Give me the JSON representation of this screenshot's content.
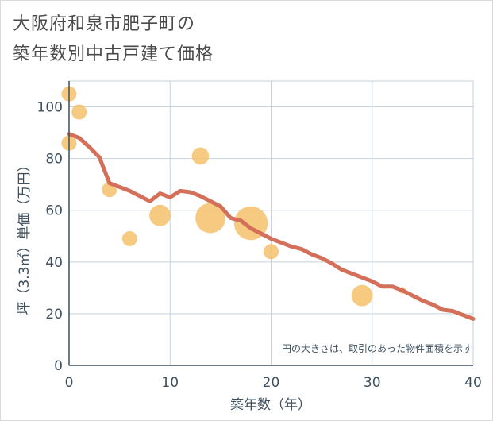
{
  "chart_data": {
    "type": "scatter",
    "title_lines": [
      "大阪府和泉市肥子町の",
      "築年数別中古戸建て価格"
    ],
    "xlabel": "築年数（年）",
    "ylabel": "坪（3.3㎡）単価（万円）",
    "xlim": [
      0,
      40
    ],
    "ylim": [
      0,
      110
    ],
    "x_ticks": [
      0,
      10,
      20,
      30,
      40
    ],
    "y_ticks": [
      0,
      20,
      40,
      60,
      80,
      100
    ],
    "grid": true,
    "annotation": "円の大きさは、取引のあった物件面積を示す",
    "colors": {
      "bubble": "#f5c26b",
      "trend": "#d4705a",
      "grid": "#c5d3de",
      "axis": "#3e4f5e"
    },
    "points": [
      {
        "x": 0,
        "y": 105,
        "size": 1
      },
      {
        "x": 0,
        "y": 86,
        "size": 1
      },
      {
        "x": 1,
        "y": 98,
        "size": 1
      },
      {
        "x": 4,
        "y": 68,
        "size": 1
      },
      {
        "x": 6,
        "y": 49,
        "size": 1
      },
      {
        "x": 9,
        "y": 58,
        "size": 2
      },
      {
        "x": 13,
        "y": 81,
        "size": 1.3
      },
      {
        "x": 14,
        "y": 57,
        "size": 4
      },
      {
        "x": 18,
        "y": 55,
        "size": 5
      },
      {
        "x": 20,
        "y": 44,
        "size": 1
      },
      {
        "x": 29,
        "y": 27,
        "size": 2
      },
      {
        "x": 33,
        "y": 29,
        "size": 0.2
      }
    ],
    "trend": {
      "name": "trend",
      "x": [
        0,
        1,
        2,
        3,
        4,
        5,
        6,
        7,
        8,
        9,
        10,
        11,
        12,
        13,
        14,
        15,
        16,
        17,
        18,
        19,
        20,
        21,
        22,
        23,
        24,
        25,
        26,
        27,
        28,
        29,
        30,
        31,
        32,
        33,
        34,
        35,
        36,
        37,
        38,
        39,
        40
      ],
      "y": [
        89.5,
        88,
        84.5,
        80.5,
        70.5,
        69,
        67.5,
        65.5,
        63.5,
        66.5,
        65,
        67.5,
        67,
        65.5,
        63.5,
        61.5,
        57,
        56,
        53,
        51,
        49,
        47.5,
        46,
        45,
        43,
        41.5,
        39.5,
        37,
        35.5,
        34,
        32.5,
        30.5,
        30.5,
        29,
        27,
        25,
        23.5,
        21.5,
        21,
        19.5,
        18
      ]
    }
  }
}
